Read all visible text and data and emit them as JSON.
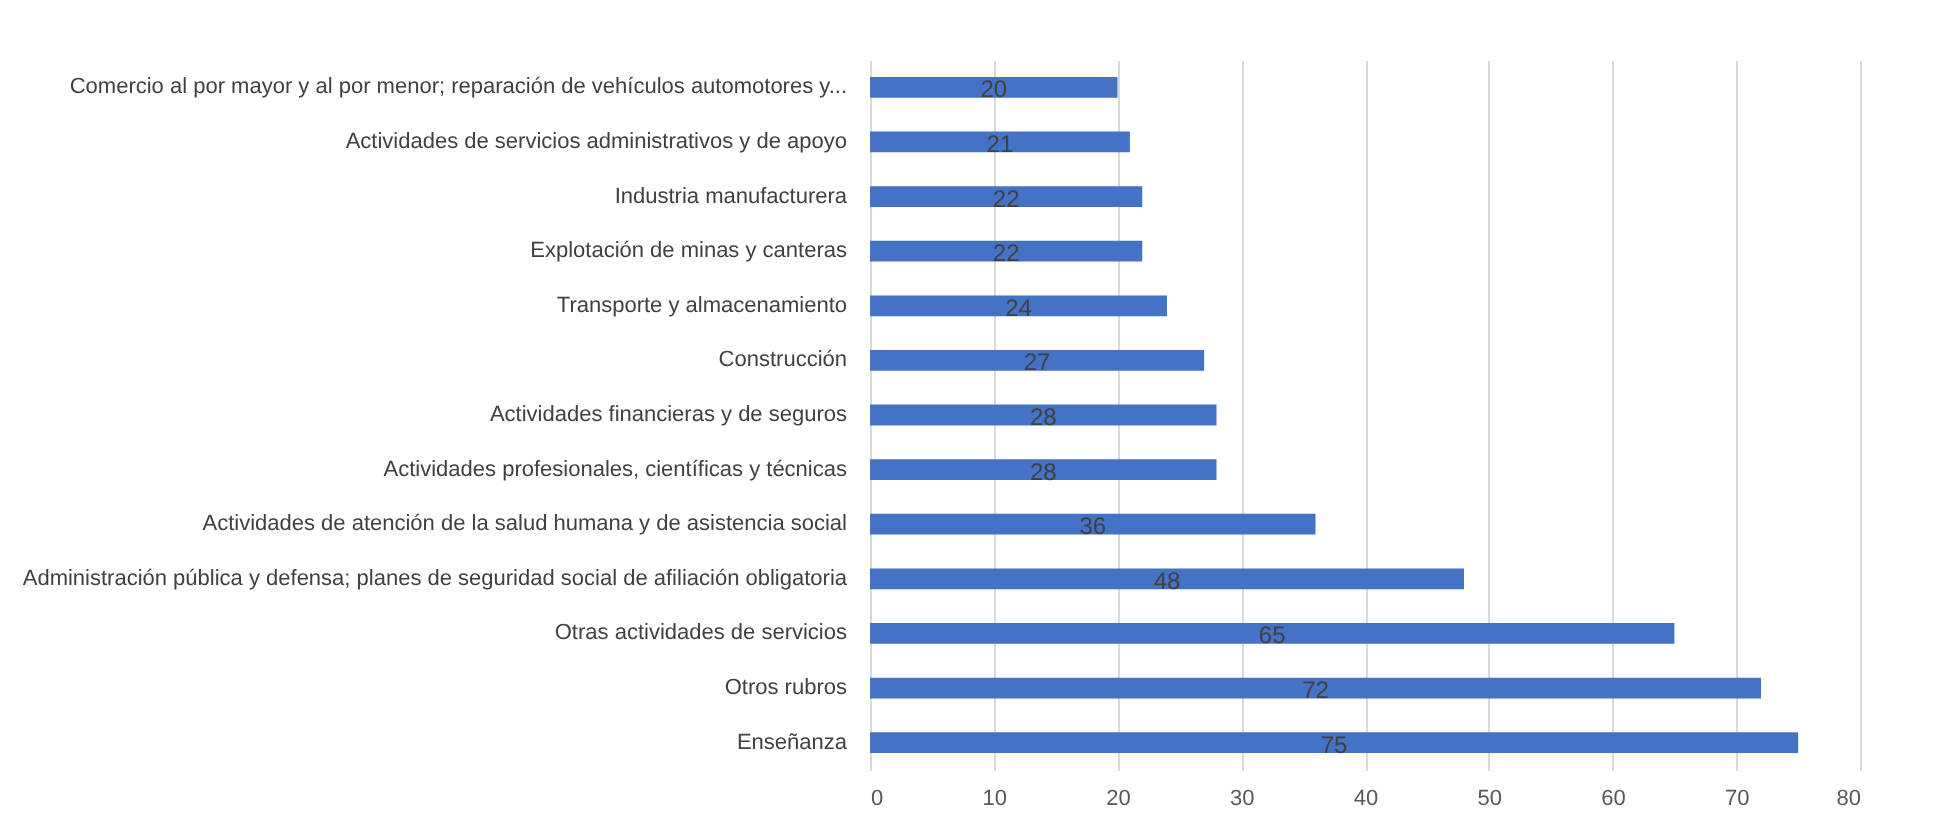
{
  "chart_data": {
    "type": "bar",
    "orientation": "horizontal",
    "categories": [
      "Comercio al por mayor y al por menor; reparación  de vehículos automotores y...",
      "Actividades de servicios administrativos y de apoyo",
      "Industria manufacturera",
      "Explotación de minas y canteras",
      "Transporte y almacenamiento",
      "Construcción",
      "Actividades financieras y de seguros",
      "Actividades profesionales, científicas y técnicas",
      "Actividades de atención de la salud humana y de asistencia social",
      "Administración pública y defensa; planes de seguridad social de afiliación obligatoria",
      "Otras actividades de servicios",
      "Otros rubros",
      "Enseñanza"
    ],
    "values": [
      20,
      21,
      22,
      22,
      24,
      27,
      28,
      28,
      36,
      48,
      65,
      72,
      75
    ],
    "color": "#4472c4",
    "xlim": [
      0,
      80
    ],
    "xticks": [
      0,
      10,
      20,
      30,
      40,
      50,
      60,
      70,
      80
    ],
    "grid": "x",
    "data_labels": true
  }
}
